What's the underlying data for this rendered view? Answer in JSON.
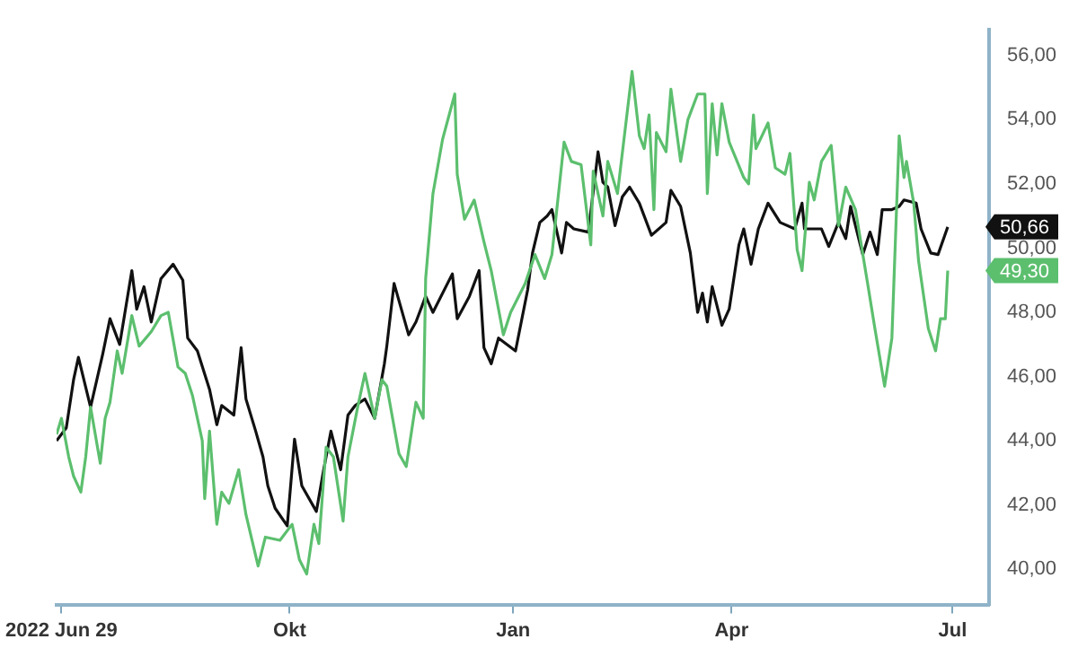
{
  "chart_data": {
    "type": "line",
    "xlim": [
      "2022-06-27",
      "2023-07-16"
    ],
    "ylim": [
      38.9,
      56.8
    ],
    "xticks": [
      {
        "value": "2022-06-29",
        "label": "2022 Jun 29"
      },
      {
        "value": "2022-10-01",
        "label": "Okt"
      },
      {
        "value": "2023-01-01",
        "label": "Jan"
      },
      {
        "value": "2023-04-01",
        "label": "Apr"
      },
      {
        "value": "2023-07-01",
        "label": "Jul"
      }
    ],
    "yticks": [
      {
        "value": 40,
        "label": "40,00"
      },
      {
        "value": 42,
        "label": "42,00"
      },
      {
        "value": 44,
        "label": "44,00"
      },
      {
        "value": 46,
        "label": "46,00"
      },
      {
        "value": 48,
        "label": "48,00"
      },
      {
        "value": 50,
        "label": "50,00"
      },
      {
        "value": 52,
        "label": "52,00"
      },
      {
        "value": 54,
        "label": "54,00"
      },
      {
        "value": 56,
        "label": "56,00"
      }
    ],
    "grid": false,
    "legend": false,
    "marker": "none",
    "line_style": "solid",
    "series": [
      {
        "color": "#5cbf6e",
        "x": [
          "2022-06-27",
          "2022-06-29",
          "2022-07-02",
          "2022-07-04",
          "2022-07-07",
          "2022-07-09",
          "2022-07-11",
          "2022-07-15",
          "2022-07-17",
          "2022-07-19",
          "2022-07-22",
          "2022-07-24",
          "2022-07-28",
          "2022-07-31",
          "2022-08-05",
          "2022-08-09",
          "2022-08-12",
          "2022-08-16",
          "2022-08-19",
          "2022-08-22",
          "2022-08-26",
          "2022-08-27",
          "2022-08-29",
          "2022-09-01",
          "2022-09-03",
          "2022-09-06",
          "2022-09-10",
          "2022-09-13",
          "2022-09-18",
          "2022-09-21",
          "2022-09-27",
          "2022-10-02",
          "2022-10-05",
          "2022-10-08",
          "2022-10-11",
          "2022-10-13",
          "2022-10-16",
          "2022-10-19",
          "2022-10-23",
          "2022-10-25",
          "2022-10-29",
          "2022-11-01",
          "2022-11-05",
          "2022-11-08",
          "2022-11-10",
          "2022-11-15",
          "2022-11-18",
          "2022-11-22",
          "2022-11-25",
          "2022-11-26",
          "2022-11-29",
          "2022-12-03",
          "2022-12-08",
          "2022-12-09",
          "2022-12-12",
          "2022-12-16",
          "2022-12-20",
          "2022-12-23",
          "2022-12-28",
          "2022-12-31",
          "2023-01-06",
          "2023-01-10",
          "2023-01-14",
          "2023-01-17",
          "2023-01-22",
          "2023-01-25",
          "2023-01-29",
          "2023-02-02",
          "2023-02-03",
          "2023-02-07",
          "2023-02-09",
          "2023-02-13",
          "2023-02-19",
          "2023-02-22",
          "2023-02-24",
          "2023-02-26",
          "2023-02-28",
          "2023-03-01",
          "2023-03-05",
          "2023-03-07",
          "2023-03-11",
          "2023-03-14",
          "2023-03-18",
          "2023-03-21",
          "2023-03-22",
          "2023-03-24",
          "2023-03-26",
          "2023-03-28",
          "2023-03-31",
          "2023-04-06",
          "2023-04-08",
          "2023-04-10",
          "2023-04-11",
          "2023-04-16",
          "2023-04-19",
          "2023-04-23",
          "2023-04-25",
          "2023-04-28",
          "2023-04-30",
          "2023-05-03",
          "2023-05-05",
          "2023-05-08",
          "2023-05-12",
          "2023-05-15",
          "2023-05-18",
          "2023-05-22",
          "2023-05-27",
          "2023-05-30",
          "2023-06-03",
          "2023-06-06",
          "2023-06-09",
          "2023-06-11",
          "2023-06-12",
          "2023-06-15",
          "2023-06-17",
          "2023-06-21",
          "2023-06-24",
          "2023-06-26",
          "2023-06-28",
          "2023-06-29"
        ],
        "values": [
          44.2,
          44.7,
          43.5,
          42.9,
          42.4,
          43.5,
          45.05,
          43.3,
          44.7,
          45.2,
          46.8,
          46.1,
          47.9,
          46.95,
          47.4,
          47.9,
          48.0,
          46.3,
          46.1,
          45.4,
          44.0,
          42.2,
          44.3,
          41.4,
          42.4,
          42.05,
          43.1,
          41.7,
          40.1,
          41.0,
          40.9,
          41.4,
          40.3,
          39.85,
          41.4,
          40.8,
          43.8,
          43.5,
          41.5,
          43.5,
          45.05,
          46.1,
          44.7,
          45.9,
          45.7,
          43.6,
          43.2,
          45.2,
          44.7,
          49.05,
          51.7,
          53.4,
          54.8,
          52.3,
          50.9,
          51.5,
          50.2,
          49.3,
          47.3,
          48.0,
          48.9,
          49.8,
          49.05,
          49.8,
          53.3,
          52.7,
          52.6,
          50.1,
          52.4,
          51.0,
          52.7,
          51.7,
          55.5,
          53.5,
          53.1,
          54.15,
          51.2,
          53.6,
          53.0,
          54.95,
          52.7,
          54.0,
          54.8,
          54.8,
          51.7,
          54.5,
          52.9,
          54.5,
          53.3,
          52.2,
          52.0,
          54.15,
          53.1,
          53.9,
          52.5,
          52.3,
          52.95,
          49.95,
          49.3,
          52.05,
          51.5,
          52.7,
          53.2,
          50.7,
          51.9,
          51.2,
          48.9,
          47.5,
          45.7,
          47.2,
          53.5,
          52.2,
          52.7,
          51.4,
          49.6,
          47.5,
          46.8,
          47.8,
          47.8,
          49.3
        ]
      },
      {
        "color": "#111111",
        "x": [
          "2022-06-27",
          "2022-07-01",
          "2022-07-04",
          "2022-07-06",
          "2022-07-11",
          "2022-07-16",
          "2022-07-19",
          "2022-07-23",
          "2022-07-28",
          "2022-07-30",
          "2022-08-02",
          "2022-08-05",
          "2022-08-09",
          "2022-08-14",
          "2022-08-18",
          "2022-08-20",
          "2022-08-24",
          "2022-08-29",
          "2022-09-01",
          "2022-09-03",
          "2022-09-08",
          "2022-09-11",
          "2022-09-13",
          "2022-09-17",
          "2022-09-20",
          "2022-09-22",
          "2022-09-25",
          "2022-09-30",
          "2022-10-03",
          "2022-10-06",
          "2022-10-12",
          "2022-10-15",
          "2022-10-18",
          "2022-10-22",
          "2022-10-25",
          "2022-10-28",
          "2022-11-01",
          "2022-11-05",
          "2022-11-09",
          "2022-11-10",
          "2022-11-13",
          "2022-11-19",
          "2022-11-22",
          "2022-11-26",
          "2022-11-29",
          "2022-12-07",
          "2022-12-09",
          "2022-12-14",
          "2022-12-18",
          "2022-12-20",
          "2022-12-23",
          "2022-12-26",
          "2023-01-02",
          "2023-01-07",
          "2023-01-09",
          "2023-01-12",
          "2023-01-15",
          "2023-01-17",
          "2023-01-21",
          "2023-01-23",
          "2023-01-26",
          "2023-02-01",
          "2023-02-05",
          "2023-02-07",
          "2023-02-09",
          "2023-02-12",
          "2023-02-15",
          "2023-02-18",
          "2023-02-22",
          "2023-02-27",
          "2023-03-05",
          "2023-03-07",
          "2023-03-11",
          "2023-03-15",
          "2023-03-18",
          "2023-03-20",
          "2023-03-22",
          "2023-03-24",
          "2023-03-28",
          "2023-03-31",
          "2023-04-04",
          "2023-04-06",
          "2023-04-09",
          "2023-04-12",
          "2023-04-16",
          "2023-04-21",
          "2023-04-27",
          "2023-04-30",
          "2023-05-01",
          "2023-05-08",
          "2023-05-11",
          "2023-05-15",
          "2023-05-18",
          "2023-05-20",
          "2023-05-25",
          "2023-05-28",
          "2023-05-31",
          "2023-06-02",
          "2023-06-06",
          "2023-06-09",
          "2023-06-11",
          "2023-06-16",
          "2023-06-18",
          "2023-06-22",
          "2023-06-25",
          "2023-06-29"
        ],
        "values": [
          44.0,
          44.4,
          45.9,
          46.6,
          45.05,
          46.7,
          47.8,
          47.0,
          49.3,
          48.1,
          48.8,
          47.7,
          49.05,
          49.5,
          49.0,
          47.2,
          46.8,
          45.6,
          44.5,
          45.1,
          44.8,
          46.9,
          45.3,
          44.3,
          43.5,
          42.6,
          41.9,
          41.35,
          44.05,
          42.6,
          41.8,
          43.1,
          44.3,
          43.1,
          44.8,
          45.1,
          45.3,
          44.7,
          46.4,
          46.95,
          48.9,
          47.3,
          47.7,
          48.5,
          48.0,
          49.2,
          47.8,
          48.5,
          49.3,
          46.9,
          46.4,
          47.2,
          46.8,
          48.7,
          49.85,
          50.8,
          51.0,
          51.2,
          49.85,
          50.8,
          50.6,
          50.5,
          53.0,
          52.05,
          51.9,
          50.7,
          51.6,
          51.9,
          51.4,
          50.4,
          50.8,
          51.8,
          51.3,
          49.85,
          48.0,
          48.6,
          47.7,
          48.8,
          47.6,
          48.1,
          50.1,
          50.6,
          49.5,
          50.6,
          51.4,
          50.8,
          50.6,
          51.4,
          50.6,
          50.6,
          50.05,
          50.8,
          50.3,
          51.3,
          49.8,
          50.5,
          49.8,
          51.2,
          51.2,
          51.3,
          51.5,
          51.4,
          50.6,
          49.85,
          49.8,
          50.66
        ]
      }
    ],
    "annotations": [
      {
        "text": "49,30",
        "x": "2023-06-29",
        "y": 49.3
      },
      {
        "text": "50,66",
        "x": "2023-06-29",
        "y": 50.66
      }
    ]
  }
}
